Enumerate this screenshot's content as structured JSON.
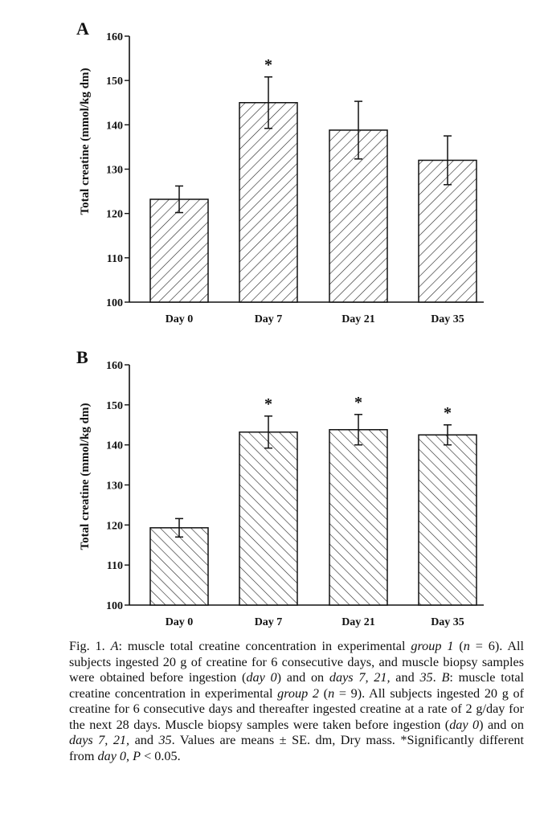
{
  "chart_data": [
    {
      "type": "bar",
      "panel": "A",
      "title": "",
      "xlabel": "",
      "ylabel": "Total creatine (mmol/kg dm)",
      "ylim": [
        100,
        160
      ],
      "yticks": [
        100,
        110,
        120,
        130,
        140,
        150,
        160
      ],
      "categories": [
        "Day 0",
        "Day 7",
        "Day 21",
        "Day 35"
      ],
      "values": [
        123.2,
        145.0,
        138.8,
        132.0
      ],
      "errors": [
        3.0,
        5.8,
        6.5,
        5.5
      ],
      "significant": [
        "",
        "*",
        "",
        ""
      ],
      "hatch": "forward-diagonal",
      "grid": false,
      "legend": "none"
    },
    {
      "type": "bar",
      "panel": "B",
      "title": "",
      "xlabel": "",
      "ylabel": "Total creatine (mmol/kg dm)",
      "ylim": [
        100,
        160
      ],
      "yticks": [
        100,
        110,
        120,
        130,
        140,
        150,
        160
      ],
      "categories": [
        "Day 0",
        "Day 7",
        "Day 21",
        "Day 35"
      ],
      "values": [
        119.3,
        143.2,
        143.8,
        142.5
      ],
      "errors": [
        2.3,
        4.0,
        3.8,
        2.5
      ],
      "significant": [
        "",
        "*",
        "*",
        "*"
      ],
      "hatch": "back-diagonal",
      "grid": false,
      "legend": "none"
    }
  ],
  "caption": [
    {
      "t": "Fig. 1. "
    },
    {
      "t": "A",
      "i": true
    },
    {
      "t": ": muscle total creatine concentration in experimental "
    },
    {
      "t": "group 1",
      "i": true
    },
    {
      "t": " ("
    },
    {
      "t": "n",
      "i": true
    },
    {
      "t": " = 6). All subjects ingested 20 g of creatine for 6 consecutive days, and muscle biopsy samples were obtained before ingestion ("
    },
    {
      "t": "day 0",
      "i": true
    },
    {
      "t": ") and on "
    },
    {
      "t": "days 7, 21,",
      "i": true
    },
    {
      "t": " and "
    },
    {
      "t": "35",
      "i": true
    },
    {
      "t": ". "
    },
    {
      "t": "B",
      "i": true
    },
    {
      "t": ": muscle total creatine concentration in experimental "
    },
    {
      "t": "group 2",
      "i": true
    },
    {
      "t": " ("
    },
    {
      "t": "n",
      "i": true
    },
    {
      "t": " = 9). All subjects ingested 20 g of creatine for 6 consecutive days and thereafter ingested creatine at a rate of 2 g/day for the next 28 days. Muscle biopsy samples were taken before ingestion ("
    },
    {
      "t": "day 0",
      "i": true
    },
    {
      "t": ") and on "
    },
    {
      "t": "days 7, 21,",
      "i": true
    },
    {
      "t": " and "
    },
    {
      "t": "35",
      "i": true
    },
    {
      "t": ". Values are means ± SE. dm, Dry mass. *Significantly different from "
    },
    {
      "t": "day 0",
      "i": true
    },
    {
      "t": ", "
    },
    {
      "t": "P",
      "i": true
    },
    {
      "t": " < 0.05."
    }
  ]
}
